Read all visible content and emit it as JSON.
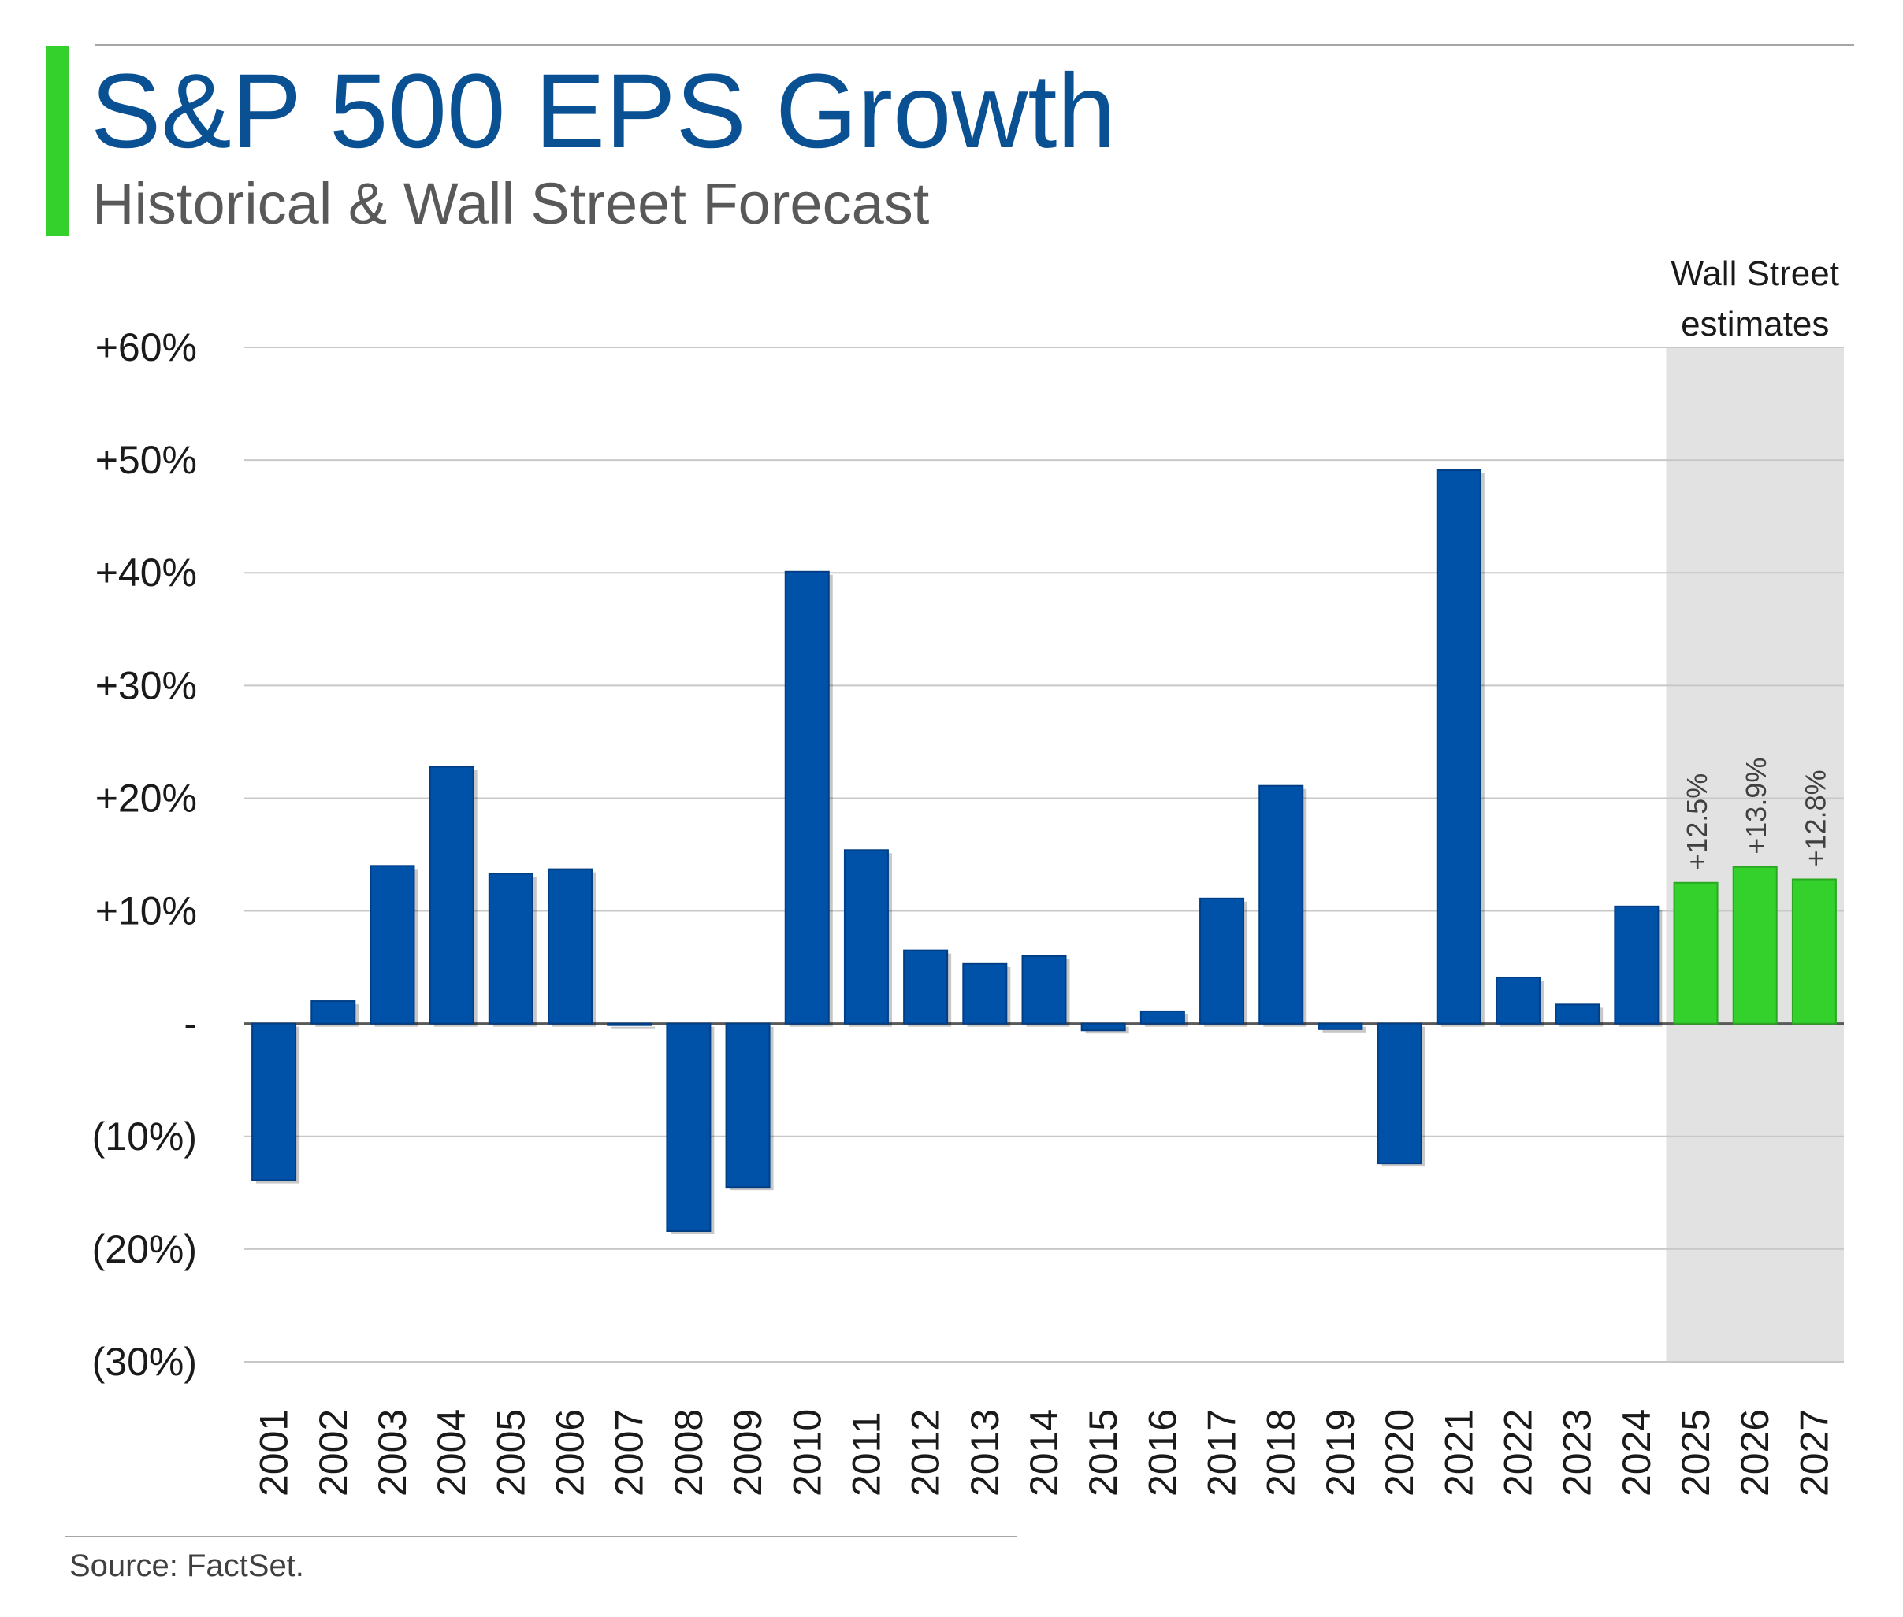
{
  "header": {
    "title": "S&P 500 EPS Growth",
    "subtitle": "Historical & Wall Street Forecast"
  },
  "chart_data": {
    "type": "bar",
    "categories": [
      "2001",
      "2002",
      "2003",
      "2004",
      "2005",
      "2006",
      "2007",
      "2008",
      "2009",
      "2010",
      "2011",
      "2012",
      "2013",
      "2014",
      "2015",
      "2016",
      "2017",
      "2018",
      "2019",
      "2020",
      "2021",
      "2022",
      "2023",
      "2024",
      "2025",
      "2026",
      "2027"
    ],
    "values": [
      -13.9,
      2.0,
      14.0,
      22.8,
      13.3,
      13.7,
      -0.1,
      -18.4,
      -14.5,
      40.1,
      15.4,
      6.5,
      5.3,
      6.0,
      -0.6,
      1.1,
      11.1,
      21.1,
      -0.5,
      -12.4,
      49.1,
      4.1,
      1.7,
      10.4,
      12.5,
      13.9,
      12.8
    ],
    "estimate_flags": [
      false,
      false,
      false,
      false,
      false,
      false,
      false,
      false,
      false,
      false,
      false,
      false,
      false,
      false,
      false,
      false,
      false,
      false,
      false,
      false,
      false,
      false,
      false,
      false,
      true,
      true,
      true
    ],
    "estimate_labels": [
      "+12.5%",
      "+13.9%",
      "+12.8%"
    ],
    "estimate_region_label": [
      "Wall Street",
      "estimates"
    ],
    "y_ticks": [
      {
        "value": 60,
        "label": "+60%"
      },
      {
        "value": 50,
        "label": "+50%"
      },
      {
        "value": 40,
        "label": "+40%"
      },
      {
        "value": 30,
        "label": "+30%"
      },
      {
        "value": 20,
        "label": "+20%"
      },
      {
        "value": 10,
        "label": "+10%"
      },
      {
        "value": 0,
        "label": "-"
      },
      {
        "value": -10,
        "label": "(10%)"
      },
      {
        "value": -20,
        "label": "(20%)"
      },
      {
        "value": -30,
        "label": "(30%)"
      }
    ],
    "ylim": [
      -30,
      60
    ],
    "grid": true,
    "xlabel": "",
    "ylabel": ""
  },
  "colors": {
    "historical": "#0051a8",
    "estimate": "#34d12c",
    "estimate_border": "#2aa822",
    "estimate_region": "#e2e2e2",
    "title": "#0a5194",
    "accent": "#34d12c",
    "gridline": "#c8c8c8"
  },
  "footer": {
    "source": "Source: FactSet."
  }
}
